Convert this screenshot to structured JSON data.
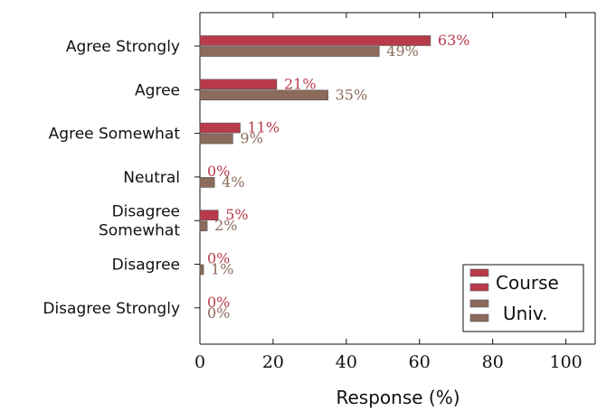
{
  "chart_data": {
    "type": "bar",
    "orientation": "horizontal",
    "categories": [
      "Agree Strongly",
      "Agree",
      "Agree Somewhat",
      "Neutral",
      "Disagree Somewhat",
      "Disagree",
      "Disagree Strongly"
    ],
    "category_lines": [
      [
        "Agree Strongly"
      ],
      [
        "Agree"
      ],
      [
        "Agree Somewhat"
      ],
      [
        "Neutral"
      ],
      [
        "Disagree",
        "Somewhat"
      ],
      [
        "Disagree"
      ],
      [
        "Disagree Strongly"
      ]
    ],
    "series": [
      {
        "name": "Course",
        "values": [
          63,
          21,
          11,
          0,
          5,
          0,
          0
        ],
        "color": "#b83a4b"
      },
      {
        "name": "Univ.",
        "values": [
          49,
          35,
          9,
          4,
          2,
          1,
          0
        ],
        "color": "#8c6a5c"
      }
    ],
    "value_suffix": "%",
    "xlabel": "Response (%)",
    "ylabel": "",
    "xlim": [
      0,
      108
    ],
    "xticks": [
      0,
      20,
      40,
      60,
      80,
      100
    ],
    "grid": false,
    "legend_position": "bottom-right"
  }
}
